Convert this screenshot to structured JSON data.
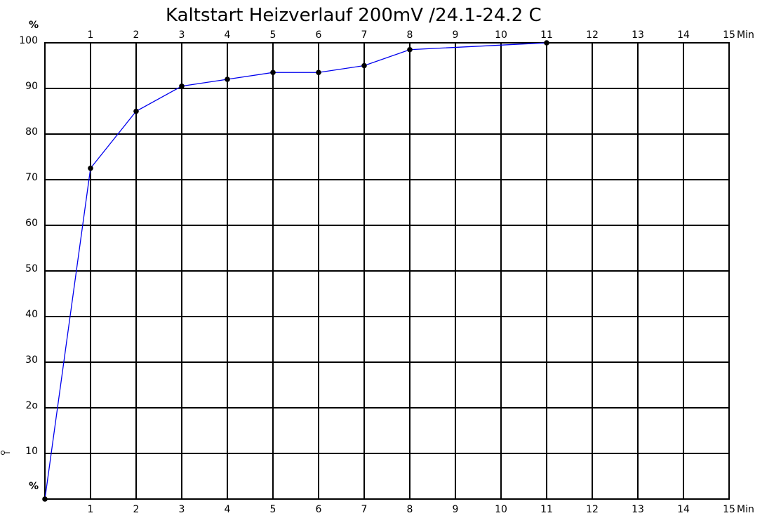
{
  "chart_data": {
    "type": "line",
    "title": "Kaltstart Heizverlauf 200mV /24.1-24.2 C",
    "xlabel": "Min",
    "ylabel": "%",
    "xlim": [
      0,
      15
    ],
    "ylim": [
      0,
      100
    ],
    "grid": true,
    "x_ticks": [
      "1",
      "2",
      "3",
      "4",
      "5",
      "6",
      "7",
      "8",
      "9",
      "10",
      "11",
      "12",
      "13",
      "14",
      "15"
    ],
    "y_ticks": [
      {
        "value": 10,
        "label": "10"
      },
      {
        "value": 20,
        "label": "2o"
      },
      {
        "value": 30,
        "label": "30"
      },
      {
        "value": 40,
        "label": "40"
      },
      {
        "value": 50,
        "label": "50"
      },
      {
        "value": 60,
        "label": "60"
      },
      {
        "value": 70,
        "label": "70"
      },
      {
        "value": 80,
        "label": "80"
      },
      {
        "value": 90,
        "label": "90"
      },
      {
        "value": 100,
        "label": "100"
      }
    ],
    "series": [
      {
        "x": [
          0,
          1,
          2,
          3,
          4,
          5,
          6,
          7,
          8,
          11
        ],
        "y": [
          0,
          72.5,
          85,
          90.5,
          92,
          93.5,
          93.5,
          95,
          98.5,
          100
        ]
      }
    ],
    "line_color": "#0000ee",
    "marker_color": "#000000"
  }
}
